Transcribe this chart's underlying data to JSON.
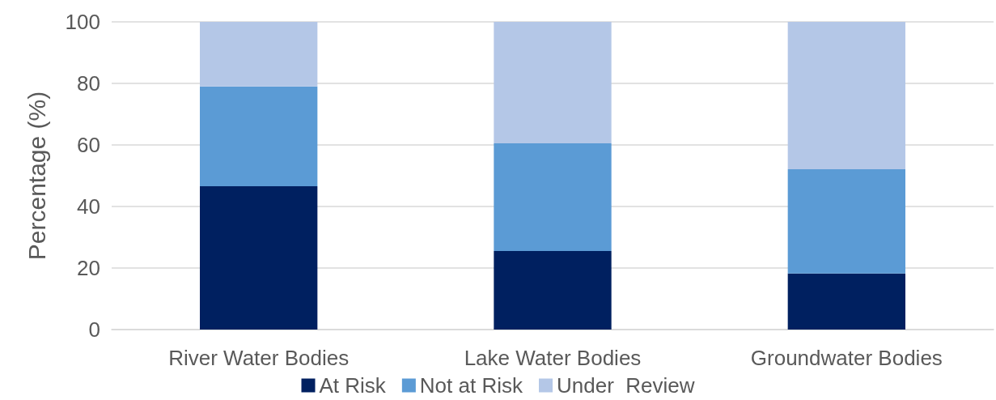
{
  "chart_data": {
    "type": "bar",
    "stacked": true,
    "ylabel": "Percentage (%)",
    "categories": [
      "River Water Bodies",
      "Lake Water Bodies",
      "Groundwater Bodies"
    ],
    "series": [
      {
        "name": "At Risk",
        "color": "#002060",
        "values": [
          46.6,
          25.5,
          18.2
        ]
      },
      {
        "name": "Not at Risk",
        "color": "#5b9bd5",
        "values": [
          32.4,
          35,
          33.9
        ]
      },
      {
        "name": "Under  Review",
        "color": "#b4c7e7",
        "values": [
          21,
          39.5,
          47.9
        ]
      }
    ],
    "ylim": [
      0,
      100
    ],
    "yticks": [
      0,
      20,
      40,
      60,
      80,
      100
    ],
    "grid": "y",
    "legend": "bottom"
  }
}
